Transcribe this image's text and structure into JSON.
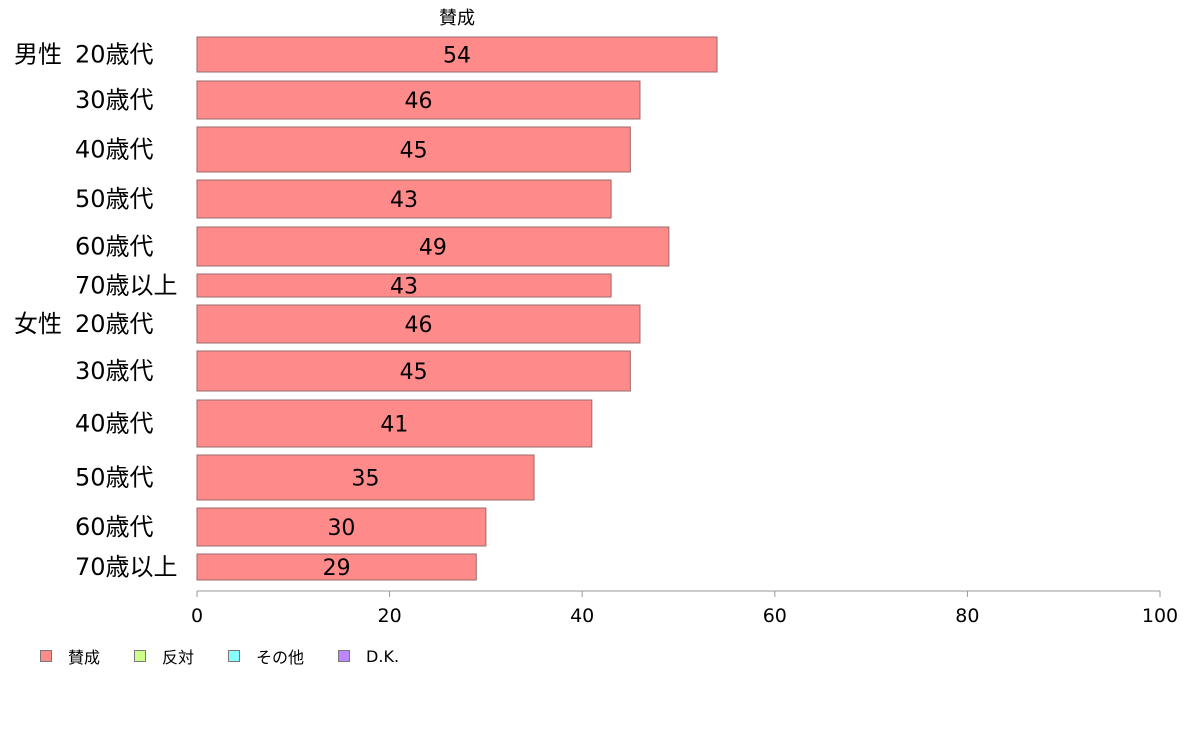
{
  "chart_data": {
    "type": "bar",
    "orientation": "horizontal",
    "title": "賛成",
    "xlim": [
      0,
      100
    ],
    "xticks": [
      "0",
      "20",
      "40",
      "60",
      "80",
      "100"
    ],
    "grid": false,
    "legend_placement": "bottom-left",
    "categories": [
      {
        "group": "男性",
        "label": "20歳代"
      },
      {
        "group": "",
        "label": "30歳代"
      },
      {
        "group": "",
        "label": "40歳代"
      },
      {
        "group": "",
        "label": "50歳代"
      },
      {
        "group": "",
        "label": "60歳代"
      },
      {
        "group": "",
        "label": "70歳以上"
      },
      {
        "group": "女性",
        "label": "20歳代"
      },
      {
        "group": "",
        "label": "30歳代"
      },
      {
        "group": "",
        "label": "40歳代"
      },
      {
        "group": "",
        "label": "50歳代"
      },
      {
        "group": "",
        "label": "60歳代"
      },
      {
        "group": "",
        "label": "70歳以上"
      }
    ],
    "series": [
      {
        "name": "賛成",
        "color": "#ff8a8a",
        "values": [
          54,
          46,
          45,
          43,
          49,
          43,
          46,
          45,
          41,
          35,
          30,
          29
        ],
        "labels": [
          "54",
          "46",
          "45",
          "43",
          "49",
          "43",
          "46",
          "45",
          "41",
          "35",
          "30",
          "29"
        ]
      }
    ]
  },
  "legend": [
    {
      "label": "賛成",
      "color": "#ff8a8a"
    },
    {
      "label": "反対",
      "color": "#ccff88"
    },
    {
      "label": "その他",
      "color": "#88ffff"
    },
    {
      "label": "D.K.",
      "color": "#bb88ff"
    }
  ]
}
